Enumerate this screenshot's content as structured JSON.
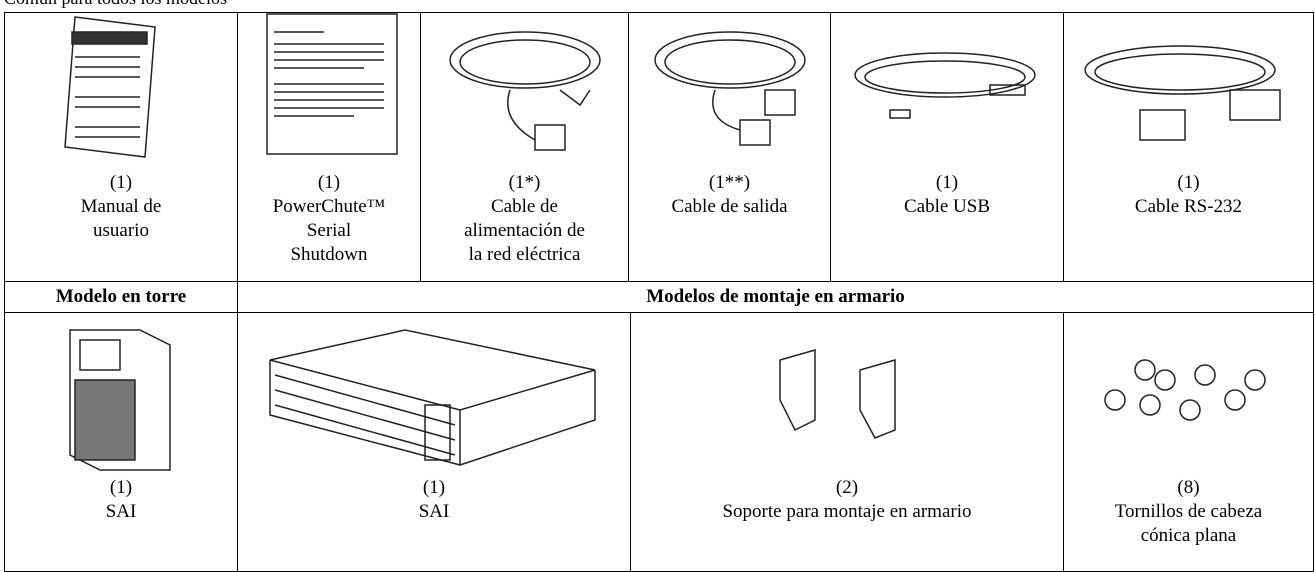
{
  "header": {
    "title": "Común para todos los modelos"
  },
  "table": {
    "row1": [
      {
        "qty": "(1)",
        "label": [
          "Manual de",
          "usuario"
        ]
      },
      {
        "qty": "(1)",
        "label": [
          "PowerChute™",
          "Serial",
          "Shutdown"
        ]
      },
      {
        "qty": "(1*)",
        "label": [
          "Cable de",
          "alimentación de",
          "la red eléctrica"
        ]
      },
      {
        "qty": "(1**)",
        "label": [
          "Cable de salida"
        ]
      },
      {
        "qty": "(1)",
        "label": [
          "Cable USB"
        ]
      },
      {
        "qty": "(1)",
        "label": [
          "Cable RS-232"
        ]
      }
    ],
    "row2": [
      "Modelo en torre",
      "Modelos de montaje en armario"
    ],
    "row3": [
      {
        "qty": "(1)",
        "label": [
          "SAI"
        ]
      },
      {
        "qty": "(1)",
        "label": [
          "SAI"
        ]
      },
      {
        "qty": "(2)",
        "label": [
          "Soporte para montaje en armario"
        ]
      },
      {
        "qty": "(8)",
        "label": [
          "Tornillos de cabeza",
          "cónica plana"
        ]
      }
    ]
  }
}
